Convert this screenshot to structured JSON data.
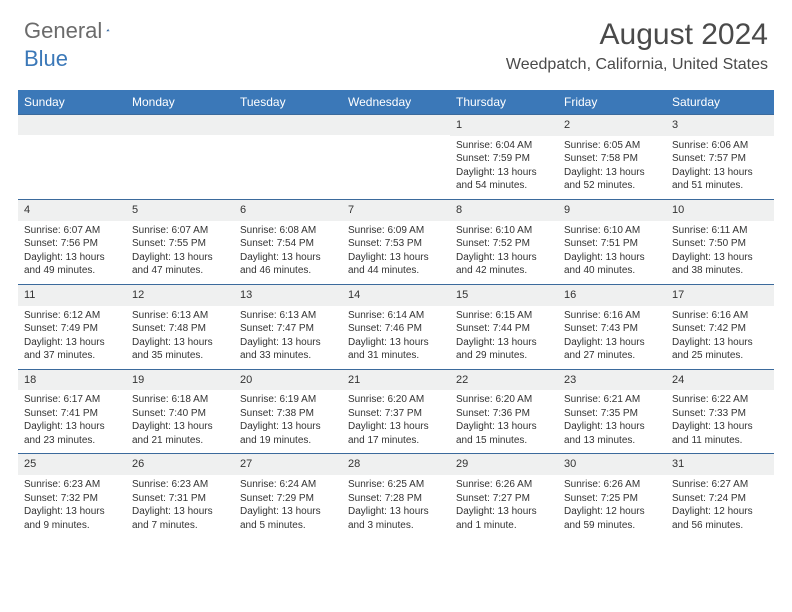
{
  "logo": {
    "general": "General",
    "blue": "Blue"
  },
  "title": "August 2024",
  "location": "Weedpatch, California, United States",
  "weekdays": [
    "Sunday",
    "Monday",
    "Tuesday",
    "Wednesday",
    "Thursday",
    "Friday",
    "Saturday"
  ],
  "colors": {
    "header_bar": "#3b78b8",
    "row_border": "#3b6a9c",
    "daynum_bg": "#eff0f0",
    "text": "#333333",
    "logo_gray": "#6b6b6b",
    "logo_blue": "#3b78b8",
    "background": "#ffffff"
  },
  "grid": [
    [
      null,
      null,
      null,
      null,
      {
        "n": "1",
        "sunrise": "Sunrise: 6:04 AM",
        "sunset": "Sunset: 7:59 PM",
        "day1": "Daylight: 13 hours",
        "day2": "and 54 minutes."
      },
      {
        "n": "2",
        "sunrise": "Sunrise: 6:05 AM",
        "sunset": "Sunset: 7:58 PM",
        "day1": "Daylight: 13 hours",
        "day2": "and 52 minutes."
      },
      {
        "n": "3",
        "sunrise": "Sunrise: 6:06 AM",
        "sunset": "Sunset: 7:57 PM",
        "day1": "Daylight: 13 hours",
        "day2": "and 51 minutes."
      }
    ],
    [
      {
        "n": "4",
        "sunrise": "Sunrise: 6:07 AM",
        "sunset": "Sunset: 7:56 PM",
        "day1": "Daylight: 13 hours",
        "day2": "and 49 minutes."
      },
      {
        "n": "5",
        "sunrise": "Sunrise: 6:07 AM",
        "sunset": "Sunset: 7:55 PM",
        "day1": "Daylight: 13 hours",
        "day2": "and 47 minutes."
      },
      {
        "n": "6",
        "sunrise": "Sunrise: 6:08 AM",
        "sunset": "Sunset: 7:54 PM",
        "day1": "Daylight: 13 hours",
        "day2": "and 46 minutes."
      },
      {
        "n": "7",
        "sunrise": "Sunrise: 6:09 AM",
        "sunset": "Sunset: 7:53 PM",
        "day1": "Daylight: 13 hours",
        "day2": "and 44 minutes."
      },
      {
        "n": "8",
        "sunrise": "Sunrise: 6:10 AM",
        "sunset": "Sunset: 7:52 PM",
        "day1": "Daylight: 13 hours",
        "day2": "and 42 minutes."
      },
      {
        "n": "9",
        "sunrise": "Sunrise: 6:10 AM",
        "sunset": "Sunset: 7:51 PM",
        "day1": "Daylight: 13 hours",
        "day2": "and 40 minutes."
      },
      {
        "n": "10",
        "sunrise": "Sunrise: 6:11 AM",
        "sunset": "Sunset: 7:50 PM",
        "day1": "Daylight: 13 hours",
        "day2": "and 38 minutes."
      }
    ],
    [
      {
        "n": "11",
        "sunrise": "Sunrise: 6:12 AM",
        "sunset": "Sunset: 7:49 PM",
        "day1": "Daylight: 13 hours",
        "day2": "and 37 minutes."
      },
      {
        "n": "12",
        "sunrise": "Sunrise: 6:13 AM",
        "sunset": "Sunset: 7:48 PM",
        "day1": "Daylight: 13 hours",
        "day2": "and 35 minutes."
      },
      {
        "n": "13",
        "sunrise": "Sunrise: 6:13 AM",
        "sunset": "Sunset: 7:47 PM",
        "day1": "Daylight: 13 hours",
        "day2": "and 33 minutes."
      },
      {
        "n": "14",
        "sunrise": "Sunrise: 6:14 AM",
        "sunset": "Sunset: 7:46 PM",
        "day1": "Daylight: 13 hours",
        "day2": "and 31 minutes."
      },
      {
        "n": "15",
        "sunrise": "Sunrise: 6:15 AM",
        "sunset": "Sunset: 7:44 PM",
        "day1": "Daylight: 13 hours",
        "day2": "and 29 minutes."
      },
      {
        "n": "16",
        "sunrise": "Sunrise: 6:16 AM",
        "sunset": "Sunset: 7:43 PM",
        "day1": "Daylight: 13 hours",
        "day2": "and 27 minutes."
      },
      {
        "n": "17",
        "sunrise": "Sunrise: 6:16 AM",
        "sunset": "Sunset: 7:42 PM",
        "day1": "Daylight: 13 hours",
        "day2": "and 25 minutes."
      }
    ],
    [
      {
        "n": "18",
        "sunrise": "Sunrise: 6:17 AM",
        "sunset": "Sunset: 7:41 PM",
        "day1": "Daylight: 13 hours",
        "day2": "and 23 minutes."
      },
      {
        "n": "19",
        "sunrise": "Sunrise: 6:18 AM",
        "sunset": "Sunset: 7:40 PM",
        "day1": "Daylight: 13 hours",
        "day2": "and 21 minutes."
      },
      {
        "n": "20",
        "sunrise": "Sunrise: 6:19 AM",
        "sunset": "Sunset: 7:38 PM",
        "day1": "Daylight: 13 hours",
        "day2": "and 19 minutes."
      },
      {
        "n": "21",
        "sunrise": "Sunrise: 6:20 AM",
        "sunset": "Sunset: 7:37 PM",
        "day1": "Daylight: 13 hours",
        "day2": "and 17 minutes."
      },
      {
        "n": "22",
        "sunrise": "Sunrise: 6:20 AM",
        "sunset": "Sunset: 7:36 PM",
        "day1": "Daylight: 13 hours",
        "day2": "and 15 minutes."
      },
      {
        "n": "23",
        "sunrise": "Sunrise: 6:21 AM",
        "sunset": "Sunset: 7:35 PM",
        "day1": "Daylight: 13 hours",
        "day2": "and 13 minutes."
      },
      {
        "n": "24",
        "sunrise": "Sunrise: 6:22 AM",
        "sunset": "Sunset: 7:33 PM",
        "day1": "Daylight: 13 hours",
        "day2": "and 11 minutes."
      }
    ],
    [
      {
        "n": "25",
        "sunrise": "Sunrise: 6:23 AM",
        "sunset": "Sunset: 7:32 PM",
        "day1": "Daylight: 13 hours",
        "day2": "and 9 minutes."
      },
      {
        "n": "26",
        "sunrise": "Sunrise: 6:23 AM",
        "sunset": "Sunset: 7:31 PM",
        "day1": "Daylight: 13 hours",
        "day2": "and 7 minutes."
      },
      {
        "n": "27",
        "sunrise": "Sunrise: 6:24 AM",
        "sunset": "Sunset: 7:29 PM",
        "day1": "Daylight: 13 hours",
        "day2": "and 5 minutes."
      },
      {
        "n": "28",
        "sunrise": "Sunrise: 6:25 AM",
        "sunset": "Sunset: 7:28 PM",
        "day1": "Daylight: 13 hours",
        "day2": "and 3 minutes."
      },
      {
        "n": "29",
        "sunrise": "Sunrise: 6:26 AM",
        "sunset": "Sunset: 7:27 PM",
        "day1": "Daylight: 13 hours",
        "day2": "and 1 minute."
      },
      {
        "n": "30",
        "sunrise": "Sunrise: 6:26 AM",
        "sunset": "Sunset: 7:25 PM",
        "day1": "Daylight: 12 hours",
        "day2": "and 59 minutes."
      },
      {
        "n": "31",
        "sunrise": "Sunrise: 6:27 AM",
        "sunset": "Sunset: 7:24 PM",
        "day1": "Daylight: 12 hours",
        "day2": "and 56 minutes."
      }
    ]
  ]
}
